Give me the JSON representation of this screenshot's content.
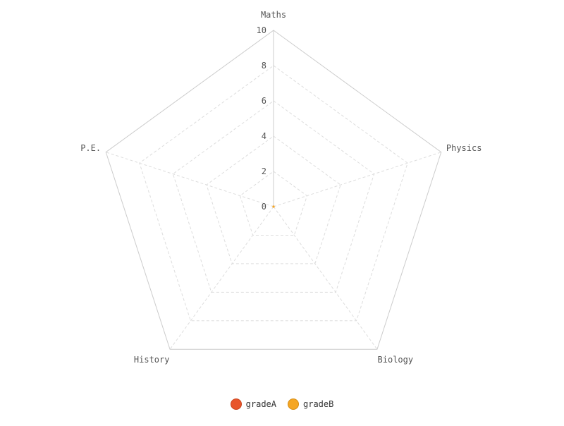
{
  "chart_data": {
    "type": "radar",
    "categories": [
      "Maths",
      "Physics",
      "Biology",
      "History",
      "P.E."
    ],
    "ticks": [
      0,
      2,
      4,
      6,
      8,
      10
    ],
    "rlim": [
      0,
      10
    ],
    "grid": true,
    "legend_position": "bottom",
    "series": [
      {
        "name": "gradeA",
        "color": "#e8552b",
        "values": [
          0,
          0,
          0,
          0,
          0
        ]
      },
      {
        "name": "gradeB",
        "color": "#f5a623",
        "values": [
          0,
          0,
          0,
          0,
          0
        ]
      }
    ]
  }
}
